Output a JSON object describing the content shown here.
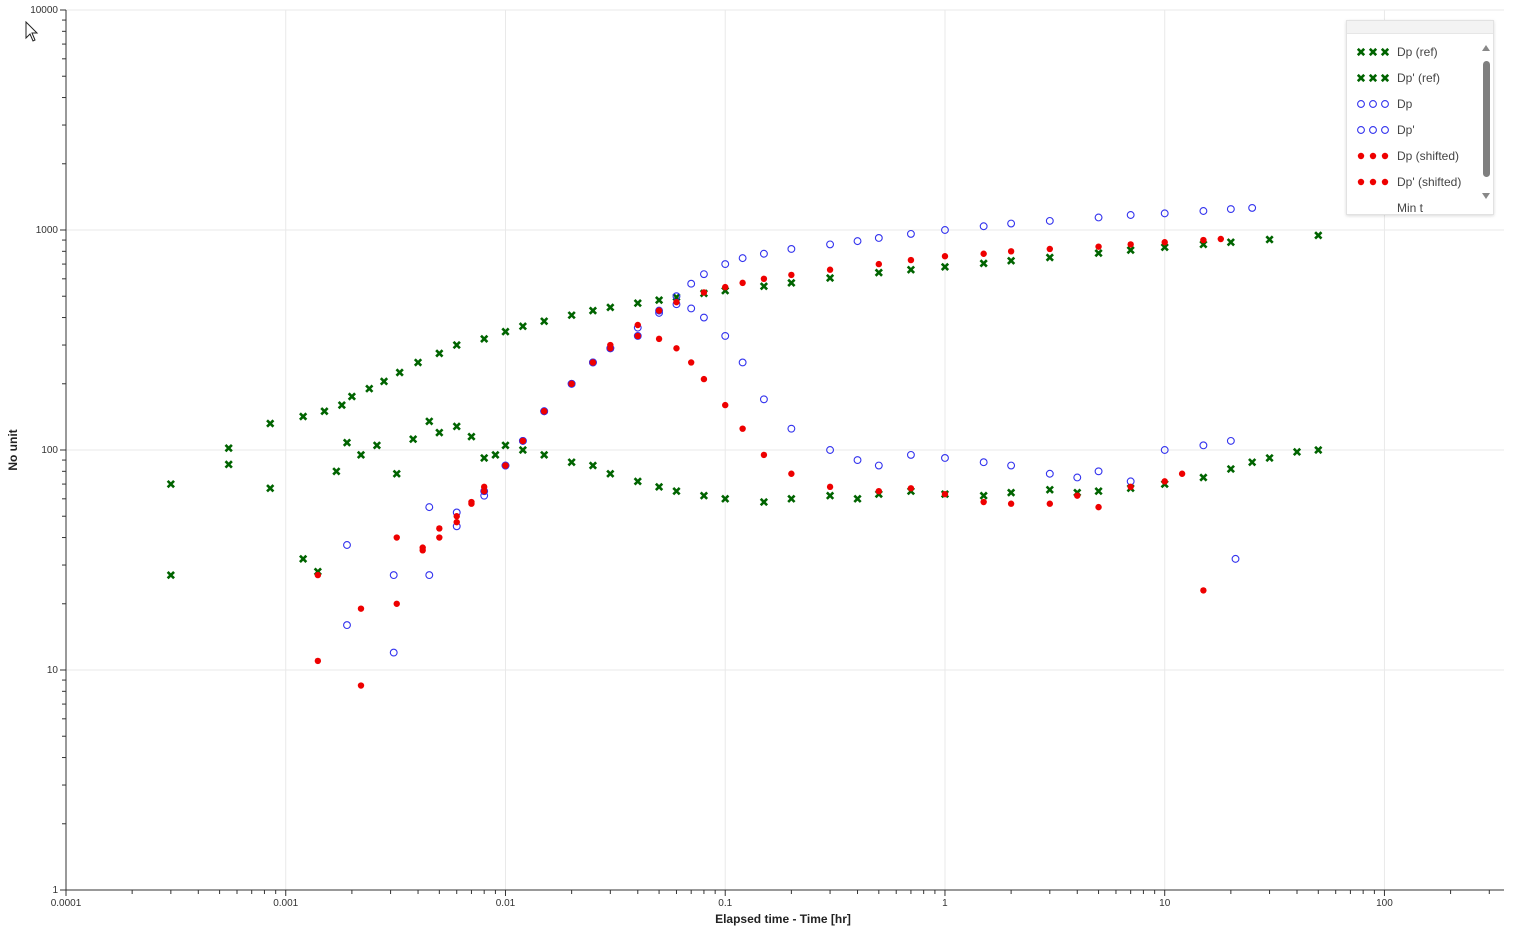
{
  "chart_data": {
    "type": "scatter",
    "xlabel": "Elapsed time - Time [hr]",
    "ylabel": "No unit",
    "x_scale": "log",
    "y_scale": "log",
    "xlim": [
      0.0001,
      350
    ],
    "ylim": [
      1,
      10000
    ],
    "x_ticks": [
      "0.0001",
      "0.001",
      "0.01",
      "0.1",
      "1",
      "10",
      "100"
    ],
    "y_ticks": [
      "1",
      "10",
      "100",
      "1000",
      "10000"
    ],
    "grid": true,
    "legend_position": "top-right",
    "series": [
      {
        "name": "Dp (ref)",
        "marker": "x",
        "color": "#006400",
        "x": [
          0.0003,
          0.00055,
          0.00085,
          0.0012,
          0.0015,
          0.0018,
          0.002,
          0.0024,
          0.0028,
          0.0033,
          0.004,
          0.005,
          0.006,
          0.008,
          0.01,
          0.012,
          0.015,
          0.02,
          0.025,
          0.03,
          0.04,
          0.05,
          0.06,
          0.08,
          0.1,
          0.15,
          0.2,
          0.3,
          0.5,
          0.7,
          1,
          1.5,
          2,
          3,
          5,
          7,
          10,
          15,
          20,
          30,
          50
        ],
        "y": [
          70,
          102,
          132,
          142,
          150,
          160,
          175,
          190,
          205,
          225,
          250,
          275,
          300,
          320,
          345,
          365,
          385,
          410,
          430,
          445,
          465,
          480,
          495,
          515,
          530,
          555,
          575,
          605,
          640,
          660,
          680,
          705,
          725,
          750,
          785,
          810,
          835,
          860,
          880,
          905,
          945
        ]
      },
      {
        "name": "Dp' (ref)",
        "marker": "x",
        "color": "#006400",
        "x": [
          0.0003,
          0.00055,
          0.00085,
          0.0012,
          0.0014,
          0.0017,
          0.0019,
          0.0022,
          0.0026,
          0.0032,
          0.0038,
          0.0045,
          0.005,
          0.006,
          0.007,
          0.008,
          0.009,
          0.01,
          0.012,
          0.015,
          0.02,
          0.025,
          0.03,
          0.04,
          0.05,
          0.06,
          0.08,
          0.1,
          0.15,
          0.2,
          0.3,
          0.4,
          0.5,
          0.7,
          1,
          1.5,
          2,
          3,
          4,
          5,
          7,
          10,
          15,
          20,
          25,
          30,
          40,
          50
        ],
        "y": [
          27,
          86,
          67,
          32,
          28,
          80,
          108,
          95,
          105,
          78,
          112,
          135,
          120,
          128,
          115,
          92,
          95,
          105,
          100,
          95,
          88,
          85,
          78,
          72,
          68,
          65,
          62,
          60,
          58,
          60,
          62,
          60,
          63,
          65,
          63,
          62,
          64,
          66,
          64,
          65,
          67,
          70,
          75,
          82,
          88,
          92,
          98,
          100
        ]
      },
      {
        "name": "Dp",
        "marker": "o",
        "color": "#3333ee",
        "x": [
          0.0019,
          0.0031,
          0.0045,
          0.006,
          0.008,
          0.01,
          0.012,
          0.015,
          0.02,
          0.025,
          0.03,
          0.04,
          0.05,
          0.06,
          0.07,
          0.08,
          0.1,
          0.12,
          0.15,
          0.2,
          0.3,
          0.4,
          0.5,
          0.7,
          1,
          1.5,
          2,
          3,
          5,
          7,
          10,
          15,
          20,
          25
        ],
        "y": [
          16,
          12,
          27,
          45,
          62,
          85,
          110,
          150,
          200,
          250,
          290,
          360,
          430,
          500,
          570,
          630,
          700,
          745,
          780,
          820,
          860,
          890,
          920,
          960,
          1000,
          1040,
          1070,
          1100,
          1140,
          1170,
          1190,
          1220,
          1245,
          1260
        ]
      },
      {
        "name": "Dp'",
        "marker": "o",
        "color": "#3333ee",
        "x": [
          0.0019,
          0.0031,
          0.0045,
          0.006,
          0.008,
          0.01,
          0.012,
          0.015,
          0.02,
          0.025,
          0.03,
          0.04,
          0.05,
          0.06,
          0.07,
          0.08,
          0.1,
          0.12,
          0.15,
          0.2,
          0.3,
          0.4,
          0.5,
          0.7,
          1,
          1.5,
          2,
          3,
          4,
          5,
          7,
          10,
          15,
          20,
          21
        ],
        "y": [
          37,
          27,
          55,
          52,
          65,
          85,
          110,
          150,
          200,
          250,
          290,
          330,
          420,
          460,
          440,
          400,
          330,
          250,
          170,
          125,
          100,
          90,
          85,
          95,
          92,
          88,
          85,
          78,
          75,
          80,
          72,
          100,
          105,
          110,
          32
        ]
      },
      {
        "name": "Dp (shifted)",
        "marker": "dot",
        "color": "#ee0000",
        "x": [
          0.0014,
          0.0022,
          0.0032,
          0.0042,
          0.005,
          0.006,
          0.007,
          0.008,
          0.01,
          0.012,
          0.015,
          0.02,
          0.025,
          0.03,
          0.04,
          0.05,
          0.06,
          0.08,
          0.1,
          0.12,
          0.15,
          0.2,
          0.3,
          0.5,
          0.7,
          1,
          1.5,
          2,
          3,
          5,
          7,
          10,
          15,
          18
        ],
        "y": [
          11,
          8.5,
          20,
          35,
          40,
          47,
          57,
          65,
          85,
          110,
          150,
          200,
          250,
          300,
          370,
          430,
          470,
          520,
          550,
          575,
          600,
          625,
          660,
          700,
          730,
          760,
          780,
          800,
          820,
          840,
          860,
          880,
          900,
          910
        ]
      },
      {
        "name": "Dp' (shifted)",
        "marker": "dot",
        "color": "#ee0000",
        "x": [
          0.0014,
          0.0022,
          0.0032,
          0.0042,
          0.005,
          0.006,
          0.007,
          0.008,
          0.01,
          0.012,
          0.015,
          0.02,
          0.025,
          0.03,
          0.04,
          0.05,
          0.06,
          0.07,
          0.08,
          0.1,
          0.12,
          0.15,
          0.2,
          0.3,
          0.5,
          0.7,
          1,
          1.5,
          2,
          3,
          4,
          5,
          7,
          10,
          12,
          15
        ],
        "y": [
          27,
          19,
          40,
          36,
          44,
          50,
          58,
          68,
          85,
          110,
          150,
          200,
          250,
          290,
          330,
          320,
          290,
          250,
          210,
          160,
          125,
          95,
          78,
          68,
          65,
          67,
          63,
          58,
          57,
          57,
          62,
          55,
          68,
          72,
          78,
          23
        ]
      }
    ],
    "legend_entries": [
      "Dp (ref)",
      "Dp' (ref)",
      "Dp",
      "Dp'",
      "Dp (shifted)",
      "Dp' (shifted)",
      "Min t"
    ]
  }
}
